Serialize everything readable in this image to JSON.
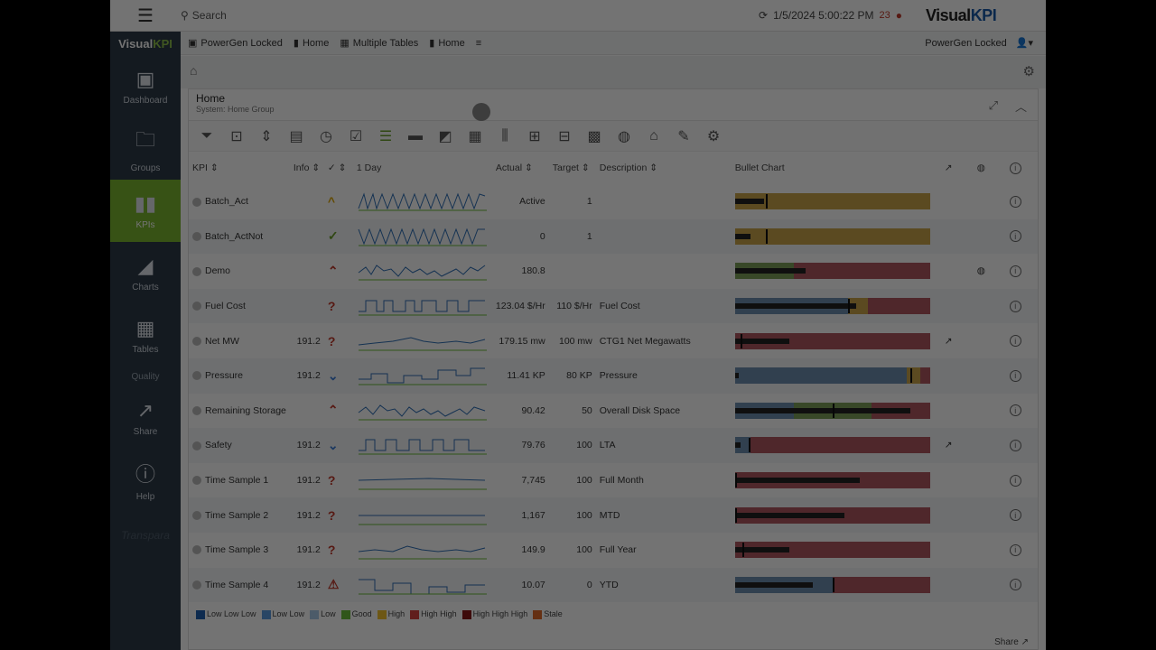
{
  "topbar": {
    "search_label": "Search",
    "datetime": "1/5/2024 5:00:22 PM",
    "alert_count": "23",
    "logo_a": "Visual",
    "logo_b": "KPI"
  },
  "sidebar": {
    "logo_a": "Visual",
    "logo_b": "KPI",
    "items": [
      {
        "label": "Dashboard",
        "icon": "dashboard-icon"
      },
      {
        "label": "Groups",
        "icon": "folder-icon"
      },
      {
        "label": "KPIs",
        "icon": "bar-chart-icon"
      },
      {
        "label": "Charts",
        "icon": "chart-icon"
      },
      {
        "label": "Tables",
        "icon": "table-icon"
      }
    ],
    "quality_label": "Quality",
    "items2": [
      {
        "label": "Share",
        "icon": "share-icon"
      },
      {
        "label": "Help",
        "icon": "help-icon"
      }
    ],
    "brand": "Transpara"
  },
  "crumbs": {
    "items": [
      "PowerGen Locked",
      "Home",
      "Multiple Tables",
      "Home"
    ],
    "right_label": "PowerGen Locked"
  },
  "panel": {
    "title": "Home",
    "subtitle": "System: Home Group"
  },
  "table": {
    "headers": {
      "kpi": "KPI",
      "info": "Info",
      "period": "1 Day",
      "actual": "Actual",
      "target": "Target",
      "description": "Description",
      "bullet": "Bullet Chart"
    },
    "rows": [
      {
        "name": "Batch_Act",
        "info": "",
        "status": "^",
        "status_color": "#d9a400",
        "actual": "Active",
        "target": "1",
        "desc": ""
      },
      {
        "name": "Batch_ActNot",
        "info": "",
        "status": "✓",
        "status_color": "#6a9e2b",
        "actual": "0",
        "target": "1",
        "desc": ""
      },
      {
        "name": "Demo",
        "info": "",
        "status": "⌃",
        "status_color": "#c0392b",
        "actual": "180.8",
        "target": "",
        "desc": ""
      },
      {
        "name": "Fuel Cost",
        "info": "",
        "status": "?",
        "status_color": "#c0392b",
        "actual": "123.04 $/Hr",
        "target": "110 $/Hr",
        "desc": "Fuel Cost"
      },
      {
        "name": "Net MW",
        "info": "191.2",
        "status": "?",
        "status_color": "#c0392b",
        "actual": "179.15 mw",
        "target": "100 mw",
        "desc": "CTG1 Net Megawatts"
      },
      {
        "name": "Pressure",
        "info": "191.2",
        "status": "⌄",
        "status_color": "#3a7bd5",
        "actual": "11.41 KP",
        "target": "80 KP",
        "desc": "Pressure"
      },
      {
        "name": "Remaining Storage",
        "info": "",
        "status": "⌃",
        "status_color": "#c0392b",
        "actual": "90.42",
        "target": "50",
        "desc": "Overall Disk Space"
      },
      {
        "name": "Safety",
        "info": "191.2",
        "status": "⌄",
        "status_color": "#3a7bd5",
        "actual": "79.76",
        "target": "100",
        "desc": "LTA"
      },
      {
        "name": "Time Sample 1",
        "info": "191.2",
        "status": "?",
        "status_color": "#c0392b",
        "actual": "7,745",
        "target": "100",
        "desc": "Full Month"
      },
      {
        "name": "Time Sample 2",
        "info": "191.2",
        "status": "?",
        "status_color": "#c0392b",
        "actual": "1,167",
        "target": "100",
        "desc": "MTD"
      },
      {
        "name": "Time Sample 3",
        "info": "191.2",
        "status": "?",
        "status_color": "#c0392b",
        "actual": "149.9",
        "target": "100",
        "desc": "Full Year"
      },
      {
        "name": "Time Sample 4",
        "info": "191.2",
        "status": "⚠",
        "status_color": "#c0392b",
        "actual": "10.07",
        "target": "0",
        "desc": "YTD"
      }
    ]
  },
  "bullets": [
    {
      "bands": [
        [
          "#c9a44a",
          0,
          1
        ]
      ],
      "bar": 0.15,
      "mark": 0.16
    },
    {
      "bands": [
        [
          "#c9a44a",
          0,
          1
        ]
      ],
      "bar": 0.08,
      "mark": 0.16
    },
    {
      "bands": [
        [
          "#7da05a",
          0,
          0.3
        ],
        [
          "#b0575f",
          0.3,
          1
        ]
      ],
      "bar": 0.36,
      "mark": null
    },
    {
      "bands": [
        [
          "#6d8fb0",
          0,
          0.58
        ],
        [
          "#c9a44a",
          0.58,
          0.68
        ],
        [
          "#b0575f",
          0.68,
          1
        ]
      ],
      "bar": 0.62,
      "mark": 0.58
    },
    {
      "bands": [
        [
          "#b0575f",
          0,
          1
        ]
      ],
      "bar": 0.28,
      "mark": 0.03
    },
    {
      "bands": [
        [
          "#6d8fb0",
          0,
          0.88
        ],
        [
          "#c9a44a",
          0.88,
          0.95
        ],
        [
          "#b0575f",
          0.95,
          1
        ]
      ],
      "bar": 0.02,
      "mark": 0.9
    },
    {
      "bands": [
        [
          "#6d8fb0",
          0,
          0.3
        ],
        [
          "#7da05a",
          0.3,
          0.7
        ],
        [
          "#b0575f",
          0.7,
          1
        ]
      ],
      "bar": 0.9,
      "mark": 0.5
    },
    {
      "bands": [
        [
          "#6d8fb0",
          0,
          0.08
        ],
        [
          "#b0575f",
          0.08,
          1
        ]
      ],
      "bar": 0.03,
      "mark": 0.07
    },
    {
      "bands": [
        [
          "#b0575f",
          0,
          1
        ]
      ],
      "bar": 0.64,
      "mark": 0.0
    },
    {
      "bands": [
        [
          "#b0575f",
          0,
          1
        ]
      ],
      "bar": 0.56,
      "mark": 0.0
    },
    {
      "bands": [
        [
          "#b0575f",
          0,
          1
        ]
      ],
      "bar": 0.28,
      "mark": 0.04
    },
    {
      "bands": [
        [
          "#6d8fb0",
          0,
          0.5
        ],
        [
          "#b0575f",
          0.5,
          1
        ]
      ],
      "bar": 0.4,
      "mark": 0.5
    }
  ],
  "legend": [
    {
      "label": "Low Low Low",
      "color": "#1f5fb0"
    },
    {
      "label": "Low Low",
      "color": "#5b9be0"
    },
    {
      "label": "Low",
      "color": "#a9cbe9"
    },
    {
      "label": "Good",
      "color": "#6abf3a"
    },
    {
      "label": "High",
      "color": "#f2c230"
    },
    {
      "label": "High High",
      "color": "#d8433f"
    },
    {
      "label": "High High High",
      "color": "#8b1a1a"
    },
    {
      "label": "Stale",
      "color": "#e06a2a"
    }
  ],
  "footer": {
    "share_label": "Share"
  }
}
